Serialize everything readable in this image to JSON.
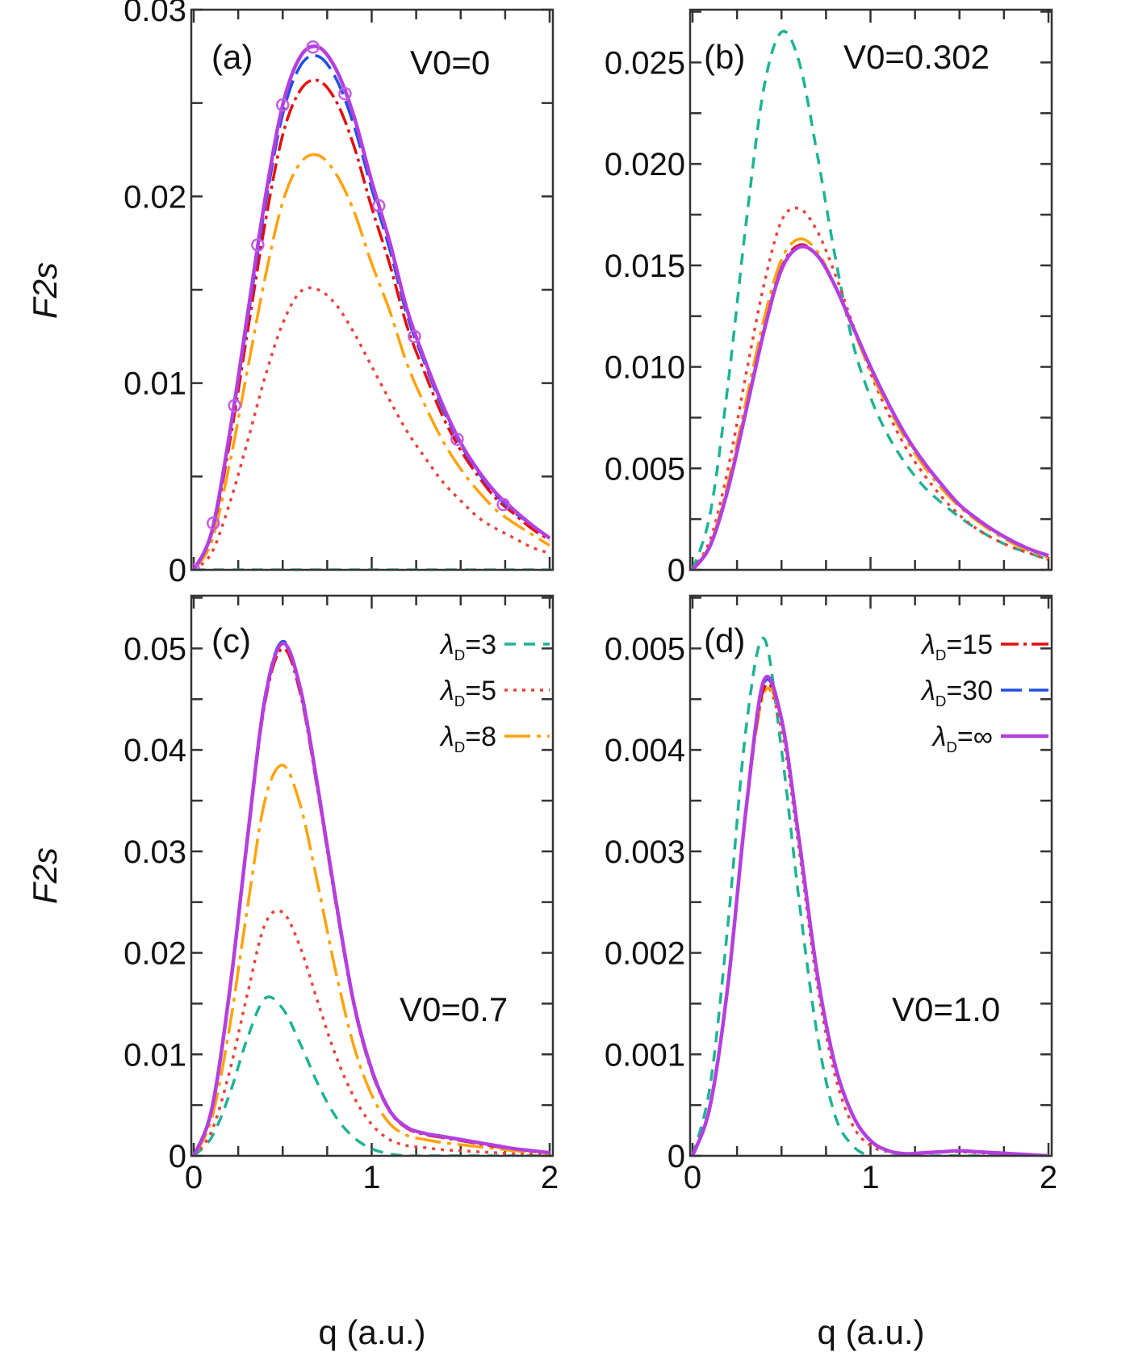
{
  "chart_data": {
    "type": "line",
    "xlabel": "q (a.u.)",
    "ylabel": "F2s",
    "x": [
      0,
      0.1,
      0.2,
      0.3,
      0.4,
      0.5,
      0.6,
      0.7,
      0.8,
      0.9,
      1.0,
      1.1,
      1.2,
      1.3,
      1.4,
      1.5,
      1.6,
      1.7,
      1.8,
      1.9,
      2.0
    ],
    "xlim": [
      0,
      2
    ],
    "xticks": [
      "0",
      "1",
      "2"
    ],
    "styles": {
      "λD=3": {
        "color": "#1db394",
        "dash": "14,10",
        "width": 3.5
      },
      "λD=5": {
        "color": "#e8443c",
        "dash": "4,7",
        "width": 3.5
      },
      "λD=8": {
        "color": "#ffa20a",
        "dash": "32,8,5,8",
        "width": 3.5
      },
      "λD=15": {
        "color": "#e80b0b",
        "dash": "22,6,4,6",
        "width": 3.5
      },
      "λD=30": {
        "color": "#1e4fe6",
        "dash": "26,9",
        "width": 3.5
      },
      "λD=∞": {
        "color": "#b43fdf",
        "dash": "",
        "width": 4.5
      }
    },
    "panels": [
      {
        "label": "(a)",
        "annotation": "V0=0",
        "ylim": [
          0,
          0.03
        ],
        "yticks": [
          "0",
          "0.01",
          "0.02",
          "0.03"
        ],
        "ytick_values": [
          0,
          0.01,
          0.02,
          0.03
        ],
        "yminor_step": 0.005,
        "series": [
          {
            "name": "λD=3",
            "values": [
              0,
              0,
              0,
              0,
              0,
              0,
              0,
              0,
              0,
              0,
              0,
              0,
              0,
              0,
              0,
              0,
              0,
              0,
              0,
              0,
              0
            ]
          },
          {
            "name": "λD=5",
            "values": [
              0,
              0.0009,
              0.0035,
              0.0068,
              0.0103,
              0.0132,
              0.0149,
              0.015,
              0.0142,
              0.0127,
              0.0109,
              0.0091,
              0.0074,
              0.006,
              0.0047,
              0.0037,
              0.0028,
              0.0022,
              0.0017,
              0.0012,
              0.0009
            ]
          },
          {
            "name": "λD=8",
            "values": [
              0,
              0.0015,
              0.0056,
              0.0106,
              0.0156,
              0.0197,
              0.0218,
              0.0222,
              0.0212,
              0.0192,
              0.0164,
              0.0139,
              0.011,
              0.0088,
              0.0069,
              0.0054,
              0.0042,
              0.0032,
              0.0025,
              0.0019,
              0.0013
            ]
          },
          {
            "name": "λD=15",
            "values": [
              0,
              0.0019,
              0.0067,
              0.0126,
              0.0185,
              0.0233,
              0.0257,
              0.0262,
              0.0251,
              0.0227,
              0.0194,
              0.0164,
              0.013,
              0.0105,
              0.0082,
              0.0064,
              0.005,
              0.0038,
              0.003,
              0.0022,
              0.0016
            ]
          },
          {
            "name": "λD=30",
            "values": [
              0,
              0.002,
              0.0071,
              0.0132,
              0.0194,
              0.0244,
              0.027,
              0.0275,
              0.0263,
              0.0238,
              0.0204,
              0.0172,
              0.0136,
              0.011,
              0.0086,
              0.0067,
              0.0052,
              0.004,
              0.0031,
              0.0024,
              0.0017
            ]
          },
          {
            "name": "λD=∞",
            "values": [
              0,
              0.002,
              0.0072,
              0.0135,
              0.0198,
              0.0249,
              0.0275,
              0.028,
              0.0268,
              0.0243,
              0.0208,
              0.0176,
              0.0139,
              0.0112,
              0.0088,
              0.0068,
              0.0053,
              0.0041,
              0.0032,
              0.0024,
              0.0017
            ]
          }
        ],
        "markers": {
          "x": [
            0,
            0.11,
            0.23,
            0.36,
            0.5,
            0.67,
            0.85,
            1.04,
            1.24,
            1.48,
            1.74
          ],
          "y": [
            0,
            0.0025,
            0.0088,
            0.0174,
            0.0249,
            0.028,
            0.0255,
            0.0195,
            0.0125,
            0.007,
            0.0035
          ],
          "color": "#c25ce6"
        }
      },
      {
        "label": "(b)",
        "annotation": "V0=0.302",
        "ylim": [
          0,
          0.0276
        ],
        "yticks": [
          "0",
          "0.005",
          "0.010",
          "0.015",
          "0.020",
          "0.025"
        ],
        "ytick_values": [
          0,
          0.005,
          0.01,
          0.015,
          0.02,
          0.025
        ],
        "yminor_step": 0.0025,
        "series": [
          {
            "name": "λD=3",
            "values": [
              0,
              0.0028,
              0.0092,
              0.017,
              0.0237,
              0.0265,
              0.025,
              0.0205,
              0.0155,
              0.0112,
              0.0085,
              0.0066,
              0.0052,
              0.0041,
              0.0033,
              0.0026,
              0.002,
              0.0015,
              0.0011,
              0.0008,
              0.0005
            ]
          },
          {
            "name": "λD=5",
            "values": [
              0,
              0.0015,
              0.005,
              0.0096,
              0.014,
              0.0172,
              0.0178,
              0.0167,
              0.0146,
              0.0121,
              0.0097,
              0.0077,
              0.006,
              0.0047,
              0.0036,
              0.0027,
              0.002,
              0.0015,
              0.0011,
              0.0008,
              0.0005
            ]
          },
          {
            "name": "λD=8",
            "values": [
              0,
              0.0013,
              0.0043,
              0.0083,
              0.0123,
              0.0153,
              0.0163,
              0.0157,
              0.014,
              0.0119,
              0.0098,
              0.008,
              0.0064,
              0.0051,
              0.004,
              0.0031,
              0.0024,
              0.0018,
              0.0013,
              0.0009,
              0.0006
            ]
          },
          {
            "name": "λD=15",
            "values": [
              0,
              0.0012,
              0.0041,
              0.0079,
              0.0118,
              0.0149,
              0.016,
              0.0155,
              0.014,
              0.012,
              0.01,
              0.0082,
              0.0066,
              0.0053,
              0.0042,
              0.0032,
              0.0025,
              0.0019,
              0.0014,
              0.001,
              0.0007
            ]
          },
          {
            "name": "λD=30",
            "values": [
              0,
              0.0012,
              0.004,
              0.0078,
              0.0117,
              0.0148,
              0.0159,
              0.0155,
              0.014,
              0.012,
              0.01,
              0.0082,
              0.0066,
              0.0053,
              0.0042,
              0.0032,
              0.0025,
              0.0019,
              0.0014,
              0.001,
              0.0007
            ]
          },
          {
            "name": "λD=∞",
            "values": [
              0,
              0.0012,
              0.004,
              0.0078,
              0.0117,
              0.0148,
              0.0159,
              0.0155,
              0.014,
              0.012,
              0.01,
              0.0082,
              0.0066,
              0.0053,
              0.0042,
              0.0032,
              0.0025,
              0.0019,
              0.0014,
              0.001,
              0.0007
            ]
          }
        ]
      },
      {
        "label": "(c)",
        "annotation": "V0=0.7",
        "ylim": [
          0,
          0.0552
        ],
        "yticks": [
          "0",
          "0.01",
          "0.02",
          "0.03",
          "0.04",
          "0.05"
        ],
        "ytick_values": [
          0,
          0.01,
          0.02,
          0.03,
          0.04,
          0.05
        ],
        "yminor_step": 0.005,
        "legend": [
          "λD=3",
          "λD=5",
          "λD=8"
        ],
        "series": [
          {
            "name": "λD=3",
            "values": [
              0,
              0.0018,
              0.006,
              0.0115,
              0.0155,
              0.0145,
              0.011,
              0.007,
              0.0038,
              0.0018,
              0.0007,
              0.0002,
              0,
              0,
              0,
              0,
              0,
              0,
              0,
              0,
              0
            ]
          },
          {
            "name": "λD=5",
            "values": [
              0,
              0.0024,
              0.0082,
              0.0158,
              0.0228,
              0.024,
              0.0205,
              0.015,
              0.0098,
              0.0058,
              0.0031,
              0.0016,
              0.001,
              0.0008,
              0.0006,
              0.0005,
              0.0004,
              0.0003,
              0.0002,
              0.0002,
              0.0001
            ]
          },
          {
            "name": "λD=8",
            "values": [
              0,
              0.0036,
              0.0125,
              0.0242,
              0.035,
              0.0385,
              0.0345,
              0.0265,
              0.018,
              0.0108,
              0.006,
              0.0032,
              0.002,
              0.0016,
              0.0013,
              0.0011,
              0.0009,
              0.0007,
              0.0005,
              0.0004,
              0.0002
            ]
          },
          {
            "name": "λD=15",
            "values": [
              0,
              0.0044,
              0.0158,
              0.0307,
              0.0446,
              0.05,
              0.0455,
              0.0356,
              0.0247,
              0.0148,
              0.0083,
              0.0044,
              0.0027,
              0.0021,
              0.0018,
              0.0015,
              0.0012,
              0.0009,
              0.0007,
              0.0005,
              0.0003
            ]
          },
          {
            "name": "λD=30",
            "values": [
              0,
              0.0045,
              0.016,
              0.031,
              0.0452,
              0.0507,
              0.046,
              0.036,
              0.025,
              0.015,
              0.0085,
              0.0045,
              0.0028,
              0.0022,
              0.0019,
              0.0016,
              0.0013,
              0.001,
              0.0007,
              0.0005,
              0.0003
            ]
          },
          {
            "name": "λD=∞",
            "values": [
              0,
              0.0045,
              0.016,
              0.031,
              0.045,
              0.0505,
              0.046,
              0.036,
              0.025,
              0.015,
              0.0085,
              0.0045,
              0.0028,
              0.0022,
              0.0019,
              0.0016,
              0.0013,
              0.001,
              0.0007,
              0.0005,
              0.0003
            ]
          }
        ]
      },
      {
        "label": "(d)",
        "annotation": "V0=1.0",
        "ylim": [
          0,
          0.00552
        ],
        "yticks": [
          "0",
          "0.001",
          "0.002",
          "0.003",
          "0.004",
          "0.005"
        ],
        "ytick_values": [
          0,
          0.001,
          0.002,
          0.003,
          0.004,
          0.005
        ],
        "yminor_step": 0.0005,
        "legend": [
          "λD=15",
          "λD=30",
          "λD=∞"
        ],
        "series": [
          {
            "name": "λD=3",
            "values": [
              0,
              0.0007,
              0.0023,
              0.0042,
              0.0051,
              0.004,
              0.0025,
              0.0012,
              0.0004,
              0.0001,
              0,
              0,
              0,
              0,
              0,
              0,
              0,
              0,
              0,
              0,
              0
            ]
          },
          {
            "name": "λD=5",
            "values": [
              0,
              0.0005,
              0.0017,
              0.0034,
              0.00458,
              0.0042,
              0.003,
              0.0017,
              0.0008,
              0.0003,
              0.0001,
              4e-05,
              2e-05,
              3e-05,
              4e-05,
              4e-05,
              3e-05,
              2e-05,
              1e-05,
              1e-05,
              0
            ]
          },
          {
            "name": "λD=8",
            "values": [
              0,
              0.0005,
              0.0017,
              0.0034,
              0.00455,
              0.0043,
              0.0031,
              0.0018,
              0.0009,
              0.0004,
              0.00015,
              5e-05,
              2e-05,
              3e-05,
              4e-05,
              5e-05,
              4e-05,
              3e-05,
              2e-05,
              1e-05,
              0
            ]
          },
          {
            "name": "λD=15",
            "values": [
              0,
              0.0005,
              0.0017,
              0.0034,
              0.0046,
              0.0043,
              0.0031,
              0.0018,
              0.0009,
              0.0004,
              0.00015,
              5e-05,
              2e-05,
              3e-05,
              4e-05,
              5e-05,
              4e-05,
              3e-05,
              2e-05,
              1e-05,
              0
            ]
          },
          {
            "name": "λD=30",
            "values": [
              0,
              0.0005,
              0.0017,
              0.0034,
              0.00465,
              0.0043,
              0.0031,
              0.0018,
              0.0009,
              0.0004,
              0.00015,
              5e-05,
              2e-05,
              3e-05,
              4e-05,
              5e-05,
              4e-05,
              3e-05,
              2e-05,
              1e-05,
              0
            ]
          },
          {
            "name": "λD=∞",
            "values": [
              0,
              0.0005,
              0.0017,
              0.0034,
              0.00468,
              0.0043,
              0.0031,
              0.0018,
              0.0009,
              0.0004,
              0.00015,
              5e-05,
              2e-05,
              3e-05,
              4e-05,
              5e-05,
              4e-05,
              3e-05,
              2e-05,
              1e-05,
              0
            ]
          }
        ]
      }
    ]
  }
}
